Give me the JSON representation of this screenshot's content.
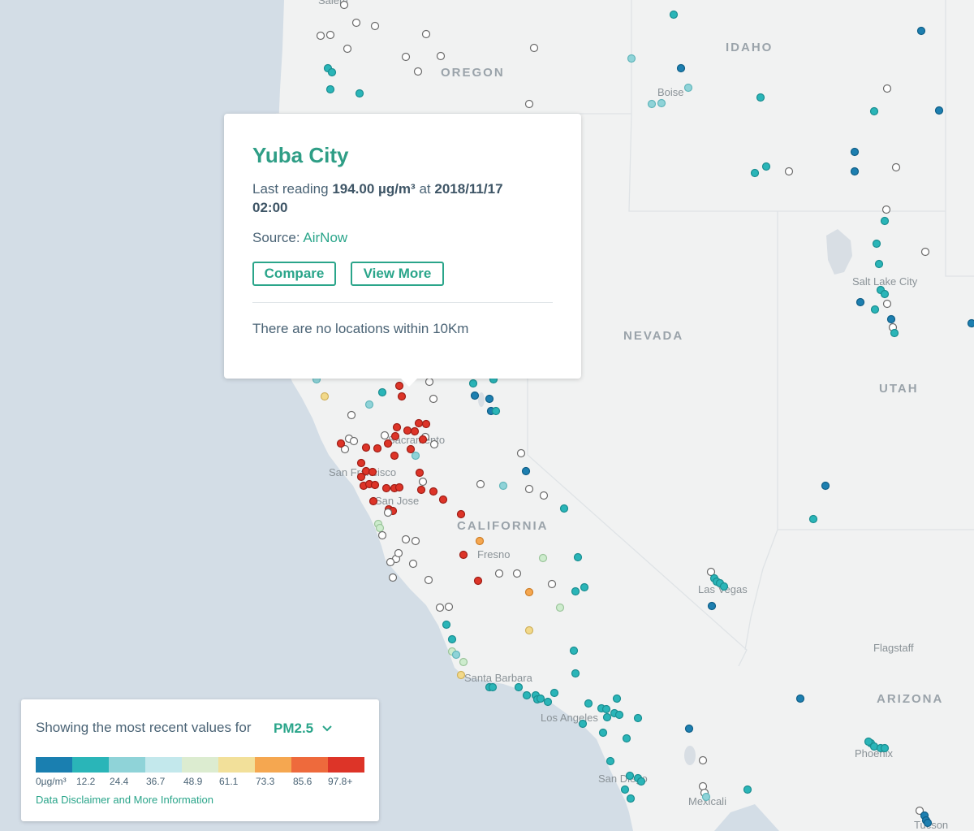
{
  "popup": {
    "title": "Yuba City",
    "reading_prefix": "Last reading",
    "reading_value": "194.00 µg/m³",
    "reading_mid": "at",
    "reading_time": "2018/11/17 02:00",
    "source_prefix": "Source:",
    "source_name": "AirNow",
    "compare_label": "Compare",
    "view_more_label": "View More",
    "nearby_text": "There are no locations within 10Km"
  },
  "legend": {
    "heading": "Showing the most recent values for",
    "parameter": "PM2.5",
    "link": "Data Disclaimer and More Information",
    "colors": [
      "#1a7fb0",
      "#2ab5b8",
      "#8fd3d8",
      "#c3e8ec",
      "#dcecd0",
      "#f2e09a",
      "#f5a750",
      "#ee6a3c",
      "#dd3428"
    ],
    "ticks": [
      "0µg/m³",
      "12.2",
      "24.4",
      "36.7",
      "48.9",
      "61.1",
      "73.3",
      "85.6",
      "97.8+"
    ]
  },
  "map_labels": {
    "states": [
      "OREGON",
      "IDAHO",
      "NEVADA",
      "UTAH",
      "CALIFORNIA",
      "ARIZONA"
    ],
    "cities": [
      "Salem",
      "Boise",
      "Salt Lake City",
      "Sacramento",
      "San Francisco",
      "San Jose",
      "Fresno",
      "Las Vegas",
      "Flagstaff",
      "Santa Barbara",
      "Los Angeles",
      "Phoenix",
      "San Diego",
      "Mexicali",
      "Tucson"
    ]
  },
  "colors": {
    "accent": "#2aa58a",
    "water": "#d3dde6",
    "land": "#f1f2f2",
    "station_unknown": "#bdbdbd"
  }
}
